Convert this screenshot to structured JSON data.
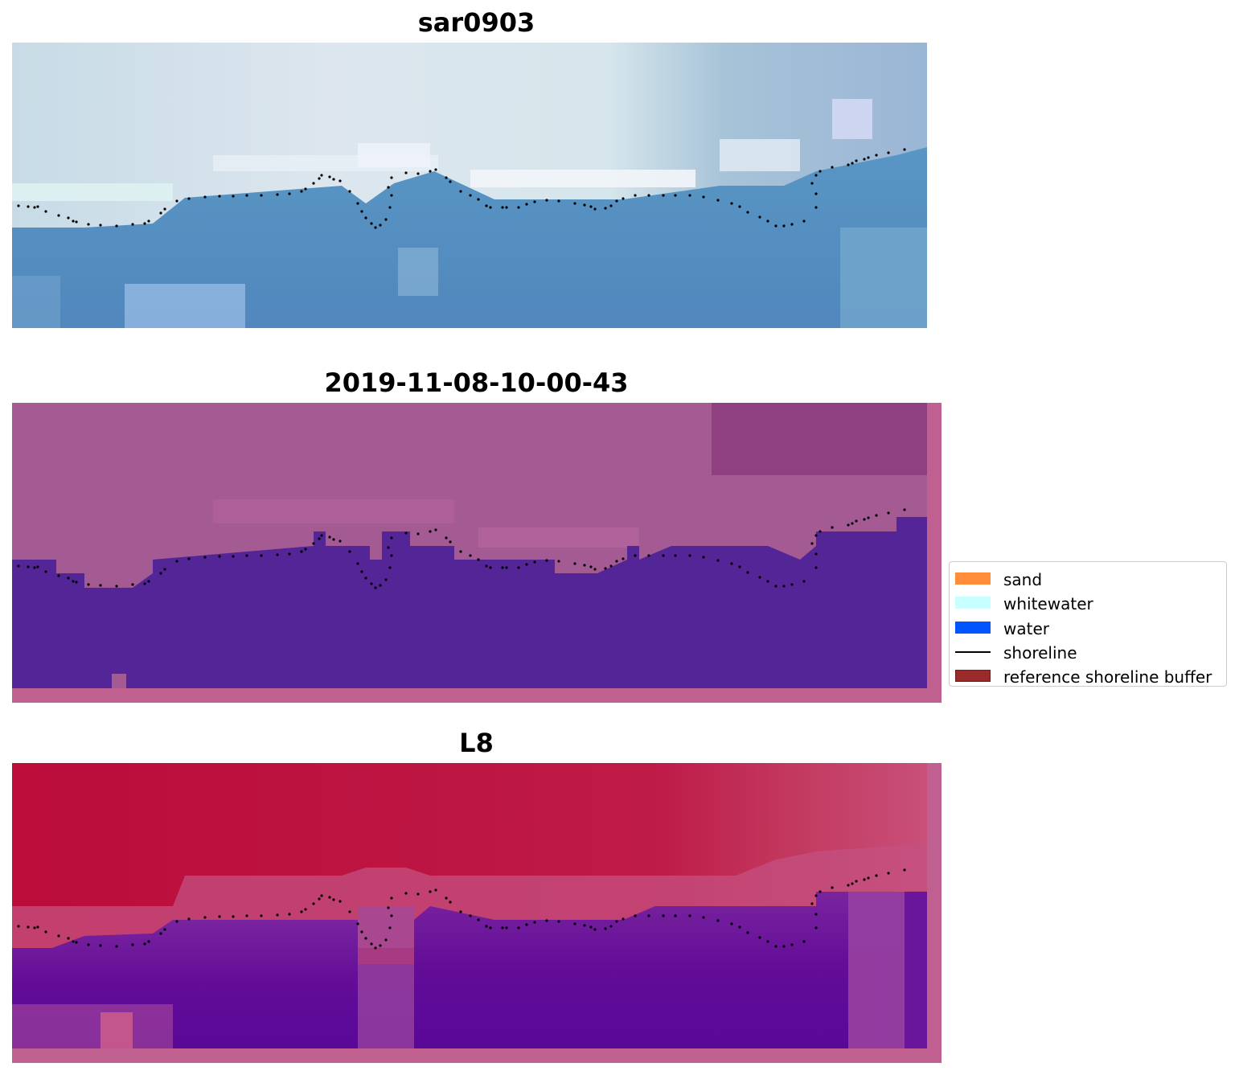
{
  "titles": {
    "top": "sar0903",
    "middle": "2019-11-08-10-00-43",
    "bottom": "L8"
  },
  "legend": {
    "items": [
      {
        "label": "sand",
        "kind": "patch",
        "color": "#ff8c3b"
      },
      {
        "label": "whitewater",
        "kind": "patch",
        "color": "#c8ffff"
      },
      {
        "label": "water",
        "kind": "patch",
        "color": "#0055ff"
      },
      {
        "label": "shoreline",
        "kind": "line",
        "color": "#000000"
      },
      {
        "label": "reference shoreline buffer",
        "kind": "patch",
        "color": "#9b2a2a"
      }
    ]
  },
  "colors": {
    "rgb_sky": "#d3e3ec",
    "rgb_water": "#4f8abb",
    "class_land": "#a45a93",
    "class_water": "#532597",
    "class_border": "#c06090",
    "mndwi_land": "#bd0f3e",
    "mndwi_water": "#5a0898",
    "mndwi_border": "#c06090"
  }
}
